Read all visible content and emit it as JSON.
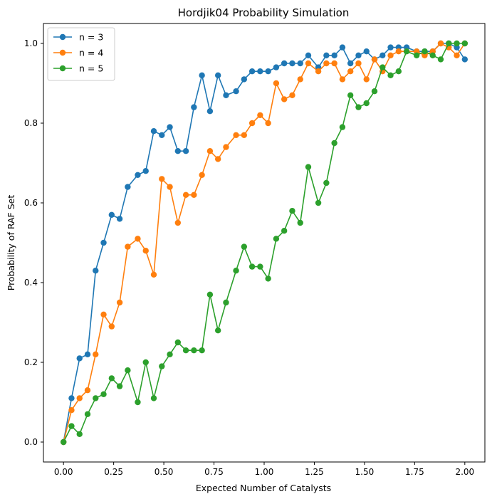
{
  "chart_data": {
    "type": "line",
    "title": "Hordjik04 Probability Simulation",
    "xlabel": "Expected Number of Catalysts",
    "ylabel": "Probability of RAF Set",
    "xlim": [
      -0.1,
      2.1
    ],
    "ylim": [
      -0.05,
      1.05
    ],
    "xticks": [
      0.0,
      0.25,
      0.5,
      0.75,
      1.0,
      1.25,
      1.5,
      1.75,
      2.0
    ],
    "xtick_labels": [
      "0.00",
      "0.25",
      "0.50",
      "0.75",
      "1.00",
      "1.25",
      "1.50",
      "1.75",
      "2.00"
    ],
    "yticks": [
      0.0,
      0.2,
      0.4,
      0.6,
      0.8,
      1.0
    ],
    "ytick_labels": [
      "0.0",
      "0.2",
      "0.4",
      "0.6",
      "0.8",
      "1.0"
    ],
    "grid": false,
    "legend_position": "upper-left",
    "x": [
      0.0,
      0.04,
      0.08,
      0.12,
      0.16,
      0.2,
      0.24,
      0.28,
      0.32,
      0.37,
      0.41,
      0.45,
      0.49,
      0.53,
      0.57,
      0.61,
      0.65,
      0.69,
      0.73,
      0.77,
      0.81,
      0.86,
      0.9,
      0.94,
      0.98,
      1.02,
      1.06,
      1.1,
      1.14,
      1.18,
      1.22,
      1.27,
      1.31,
      1.35,
      1.39,
      1.43,
      1.47,
      1.51,
      1.55,
      1.59,
      1.63,
      1.67,
      1.71,
      1.76,
      1.8,
      1.84,
      1.88,
      1.92,
      1.96,
      2.0
    ],
    "series": [
      {
        "name": "n = 3",
        "color": "#1f77b4",
        "values": [
          0.0,
          0.11,
          0.21,
          0.22,
          0.43,
          0.5,
          0.57,
          0.56,
          0.64,
          0.67,
          0.68,
          0.78,
          0.77,
          0.79,
          0.73,
          0.73,
          0.84,
          0.92,
          0.83,
          0.92,
          0.87,
          0.88,
          0.91,
          0.93,
          0.93,
          0.93,
          0.94,
          0.95,
          0.95,
          0.95,
          0.97,
          0.94,
          0.97,
          0.97,
          0.99,
          0.95,
          0.97,
          0.98,
          0.96,
          0.97,
          0.99,
          0.99,
          0.99,
          0.98,
          0.98,
          0.98,
          1.0,
          1.0,
          0.99,
          0.96
        ]
      },
      {
        "name": "n = 4",
        "color": "#ff7f0e",
        "values": [
          0.0,
          0.08,
          0.11,
          0.13,
          0.22,
          0.32,
          0.29,
          0.35,
          0.49,
          0.51,
          0.48,
          0.42,
          0.66,
          0.64,
          0.55,
          0.62,
          0.62,
          0.67,
          0.73,
          0.71,
          0.74,
          0.77,
          0.77,
          0.8,
          0.82,
          0.8,
          0.9,
          0.86,
          0.87,
          0.91,
          0.95,
          0.93,
          0.95,
          0.95,
          0.91,
          0.93,
          0.95,
          0.91,
          0.96,
          0.93,
          0.97,
          0.98,
          0.98,
          0.98,
          0.97,
          0.98,
          1.0,
          0.99,
          0.97,
          1.0
        ]
      },
      {
        "name": "n = 5",
        "color": "#2ca02c",
        "values": [
          0.0,
          0.04,
          0.02,
          0.07,
          0.11,
          0.12,
          0.16,
          0.14,
          0.18,
          0.1,
          0.2,
          0.11,
          0.19,
          0.22,
          0.25,
          0.23,
          0.23,
          0.23,
          0.37,
          0.28,
          0.35,
          0.43,
          0.49,
          0.44,
          0.44,
          0.41,
          0.51,
          0.53,
          0.58,
          0.55,
          0.69,
          0.6,
          0.65,
          0.75,
          0.79,
          0.87,
          0.84,
          0.85,
          0.88,
          0.94,
          0.92,
          0.93,
          0.98,
          0.97,
          0.98,
          0.97,
          0.96,
          1.0,
          1.0,
          1.0
        ]
      }
    ]
  }
}
